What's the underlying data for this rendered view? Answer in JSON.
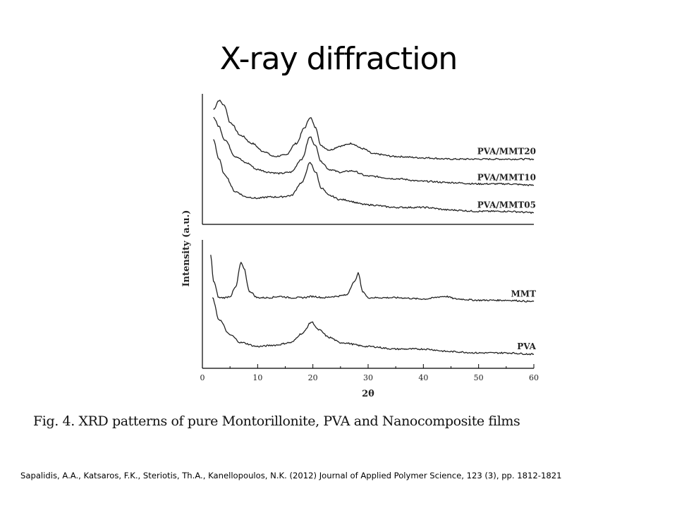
{
  "slide": {
    "title": "X-ray diffraction",
    "caption": "Fig. 4. XRD patterns of pure Montorillonite, PVA and Nanocomposite films",
    "citation": "Sapalidis, A.A., Katsaros, F.K., Steriotis, Th.A., Kanellopoulos, N.K.  (2012) Journal of Applied Polymer Science, 123 (3), pp. 1812-1821"
  },
  "chart_data": {
    "type": "line",
    "xlabel": "2θ",
    "ylabel": "Intensity (a.u.)",
    "xlim": [
      0,
      60
    ],
    "x_ticks": [
      "0",
      "10",
      "20",
      "30",
      "40",
      "50",
      "60"
    ],
    "grid": false,
    "panels": [
      {
        "position": "top",
        "series": [
          {
            "name": "PVA/MMT20",
            "points": [
              [
                2,
                0.88
              ],
              [
                3,
                0.95
              ],
              [
                4,
                0.91
              ],
              [
                5,
                0.78
              ],
              [
                7,
                0.68
              ],
              [
                9,
                0.62
              ],
              [
                11,
                0.56
              ],
              [
                13,
                0.52
              ],
              [
                15,
                0.53
              ],
              [
                17,
                0.62
              ],
              [
                18.5,
                0.74
              ],
              [
                19.5,
                0.82
              ],
              [
                20.5,
                0.74
              ],
              [
                21.5,
                0.6
              ],
              [
                23,
                0.57
              ],
              [
                25,
                0.6
              ],
              [
                27,
                0.62
              ],
              [
                29,
                0.58
              ],
              [
                31,
                0.54
              ],
              [
                35,
                0.52
              ],
              [
                40,
                0.51
              ],
              [
                45,
                0.5
              ],
              [
                50,
                0.5
              ],
              [
                55,
                0.5
              ],
              [
                60,
                0.5
              ]
            ]
          },
          {
            "name": "PVA/MMT10",
            "points": [
              [
                2,
                0.82
              ],
              [
                3,
                0.75
              ],
              [
                4,
                0.65
              ],
              [
                6,
                0.52
              ],
              [
                8,
                0.47
              ],
              [
                10,
                0.42
              ],
              [
                12,
                0.4
              ],
              [
                14,
                0.39
              ],
              [
                16,
                0.4
              ],
              [
                18,
                0.5
              ],
              [
                19.5,
                0.67
              ],
              [
                20.5,
                0.6
              ],
              [
                21.5,
                0.48
              ],
              [
                23,
                0.42
              ],
              [
                25,
                0.4
              ],
              [
                27,
                0.41
              ],
              [
                30,
                0.37
              ],
              [
                35,
                0.35
              ],
              [
                40,
                0.33
              ],
              [
                45,
                0.32
              ],
              [
                50,
                0.31
              ],
              [
                55,
                0.31
              ],
              [
                60,
                0.3
              ]
            ]
          },
          {
            "name": "PVA/MMT05",
            "points": [
              [
                2,
                0.65
              ],
              [
                3,
                0.5
              ],
              [
                4,
                0.38
              ],
              [
                6,
                0.25
              ],
              [
                8,
                0.21
              ],
              [
                10,
                0.2
              ],
              [
                12,
                0.21
              ],
              [
                14,
                0.21
              ],
              [
                16,
                0.22
              ],
              [
                18,
                0.32
              ],
              [
                19.5,
                0.47
              ],
              [
                20.5,
                0.4
              ],
              [
                21.5,
                0.28
              ],
              [
                23,
                0.22
              ],
              [
                25,
                0.19
              ],
              [
                30,
                0.15
              ],
              [
                35,
                0.13
              ],
              [
                40,
                0.13
              ],
              [
                45,
                0.11
              ],
              [
                50,
                0.1
              ],
              [
                55,
                0.1
              ],
              [
                60,
                0.09
              ]
            ]
          }
        ]
      },
      {
        "position": "bottom",
        "series": [
          {
            "name": "MMT",
            "points": [
              [
                1.5,
                0.88
              ],
              [
                2,
                0.68
              ],
              [
                3,
                0.55
              ],
              [
                4,
                0.55
              ],
              [
                5,
                0.56
              ],
              [
                6,
                0.63
              ],
              [
                7,
                0.82
              ],
              [
                7.5,
                0.78
              ],
              [
                8.5,
                0.6
              ],
              [
                10,
                0.55
              ],
              [
                12,
                0.55
              ],
              [
                14,
                0.56
              ],
              [
                16,
                0.55
              ],
              [
                18,
                0.55
              ],
              [
                20,
                0.56
              ],
              [
                22,
                0.55
              ],
              [
                24,
                0.56
              ],
              [
                26,
                0.57
              ],
              [
                27.5,
                0.67
              ],
              [
                28.2,
                0.74
              ],
              [
                29,
                0.6
              ],
              [
                30,
                0.55
              ],
              [
                35,
                0.55
              ],
              [
                40,
                0.54
              ],
              [
                44,
                0.56
              ],
              [
                46,
                0.54
              ],
              [
                50,
                0.53
              ],
              [
                55,
                0.53
              ],
              [
                60,
                0.52
              ]
            ]
          },
          {
            "name": "PVA",
            "points": [
              [
                1.8,
                0.55
              ],
              [
                3,
                0.38
              ],
              [
                5,
                0.26
              ],
              [
                7,
                0.2
              ],
              [
                10,
                0.17
              ],
              [
                13,
                0.18
              ],
              [
                16,
                0.2
              ],
              [
                18,
                0.27
              ],
              [
                19.8,
                0.36
              ],
              [
                21,
                0.3
              ],
              [
                23,
                0.24
              ],
              [
                25,
                0.2
              ],
              [
                30,
                0.17
              ],
              [
                35,
                0.15
              ],
              [
                40,
                0.15
              ],
              [
                45,
                0.13
              ],
              [
                50,
                0.12
              ],
              [
                55,
                0.12
              ],
              [
                60,
                0.11
              ]
            ]
          }
        ]
      }
    ]
  }
}
